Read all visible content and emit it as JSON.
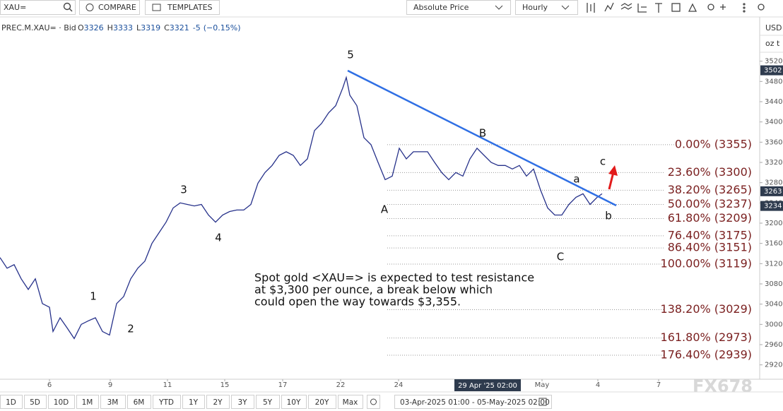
{
  "toolbar": {
    "search": "XAU=",
    "compare": "COMPARE",
    "templates": "TEMPLATES",
    "scale": "Absolute Price",
    "interval": "Hourly"
  },
  "chart_data": {
    "type": "line",
    "series": [
      {
        "name": "PREC.M.XAU= · Bid",
        "color": "#26318a",
        "x": [
          0,
          2,
          4,
          6,
          8,
          10,
          12,
          14,
          15,
          17,
          19,
          21,
          23,
          25,
          27,
          29,
          31,
          33,
          35,
          37,
          39,
          41,
          43,
          45,
          47,
          49,
          51,
          53,
          55,
          57,
          59,
          61,
          63,
          65,
          67,
          69,
          71,
          73,
          75,
          77,
          79,
          81,
          83,
          85,
          87,
          89,
          91,
          93,
          95,
          97,
          98,
          99,
          101,
          103,
          105,
          107,
          109,
          111,
          113,
          115,
          117,
          119,
          121,
          123,
          125,
          127,
          129,
          131,
          133,
          135,
          137,
          139,
          141,
          143,
          145,
          147,
          149,
          151,
          153,
          155,
          157,
          159,
          161,
          163,
          165,
          167,
          169,
          170.4
        ],
        "values": [
          3132,
          3111,
          3118,
          3090,
          3069,
          3090,
          3041,
          3034,
          2986,
          3013,
          2993,
          2972,
          3000,
          3007,
          3013,
          2986,
          2979,
          3041,
          3055,
          3090,
          3111,
          3125,
          3160,
          3181,
          3202,
          3230,
          3240,
          3237,
          3234,
          3237,
          3216,
          3202,
          3216,
          3223,
          3226,
          3226,
          3237,
          3279,
          3300,
          3314,
          3334,
          3341,
          3334,
          3314,
          3327,
          3383,
          3397,
          3418,
          3432,
          3467,
          3488,
          3453,
          3432,
          3369,
          3355,
          3320,
          3286,
          3293,
          3348,
          3327,
          3341,
          3341,
          3341,
          3320,
          3300,
          3286,
          3300,
          3293,
          3327,
          3348,
          3334,
          3320,
          3314,
          3314,
          3307,
          3314,
          3293,
          3307,
          3265,
          3230,
          3216,
          3216,
          3237,
          3251,
          3258,
          3237,
          3251,
          3258
        ]
      }
    ],
    "quote": [
      {
        "key": "O",
        "value": 3326
      },
      {
        "key": "H",
        "value": 3333
      },
      {
        "key": "L",
        "value": 3319
      },
      {
        "key": "C",
        "value": 3321
      }
    ],
    "change": -5,
    "change_pct": {
      "value": -0.15,
      "label": "(−0.15%)"
    },
    "xlim": [
      0,
      215
    ],
    "xticks": [
      {
        "value": 14,
        "label": "6"
      },
      {
        "value": 31.2,
        "label": "9"
      },
      {
        "value": 47.4,
        "label": "11"
      },
      {
        "value": 63.6,
        "label": "15"
      },
      {
        "value": 80,
        "label": "17"
      },
      {
        "value": 96.4,
        "label": "22"
      },
      {
        "value": 112.8,
        "label": "24"
      },
      {
        "value": 153.4,
        "label": "May"
      },
      {
        "value": 169.2,
        "label": "4"
      },
      {
        "value": 186.4,
        "label": "7"
      }
    ],
    "crosshair_label": "29 Apr '25 02:00",
    "ylim": [
      2900,
      3560
    ],
    "yticks": [
      2920,
      2960,
      3000,
      3040,
      3080,
      3120,
      3160,
      3200,
      3240,
      3280,
      3320,
      3360,
      3400,
      3440,
      3480,
      3520
    ],
    "y_units": [
      "USD",
      "oz t"
    ],
    "price_markers": [
      {
        "value": 3502
      },
      {
        "value": 3263
      },
      {
        "value": 3234
      }
    ],
    "levels": [
      {
        "label": "0.00% (3355)",
        "value": 3355
      },
      {
        "label": "23.60% (3300)",
        "value": 3300
      },
      {
        "label": "38.20% (3265)",
        "value": 3265
      },
      {
        "label": "50.00% (3237)",
        "value": 3237
      },
      {
        "label": "61.80% (3209)",
        "value": 3209
      },
      {
        "label": "76.40% (3175)",
        "value": 3175
      },
      {
        "label": "86.40% (3151)",
        "value": 3151
      },
      {
        "label": "100.00% (3119)",
        "value": 3119
      },
      {
        "label": "138.20% (3029)",
        "value": 3029
      },
      {
        "label": "161.80% (2973)",
        "value": 2973
      },
      {
        "label": "176.40% (2939)",
        "value": 2939
      }
    ],
    "level_color": "#7a1f1f",
    "waves": [
      "5",
      "B",
      "A",
      "a",
      "c",
      "b",
      "C",
      "1",
      "2",
      "3",
      "4"
    ],
    "annotation": [
      "Spot gold <XAU=> is expected to test resistance",
      "at $3,300 per ounce, a break below which",
      "could open the way towards $3,355."
    ],
    "watermark": "FX678"
  },
  "range_bar": {
    "buttons": [
      "1D",
      "5D",
      "10D",
      "1M",
      "3M",
      "6M",
      "YTD",
      "1Y",
      "2Y",
      "3Y",
      "5Y",
      "10Y",
      "20Y",
      "Max"
    ],
    "dates": "03-Apr-2025 01:00 - 05-May-2025 02:00"
  }
}
